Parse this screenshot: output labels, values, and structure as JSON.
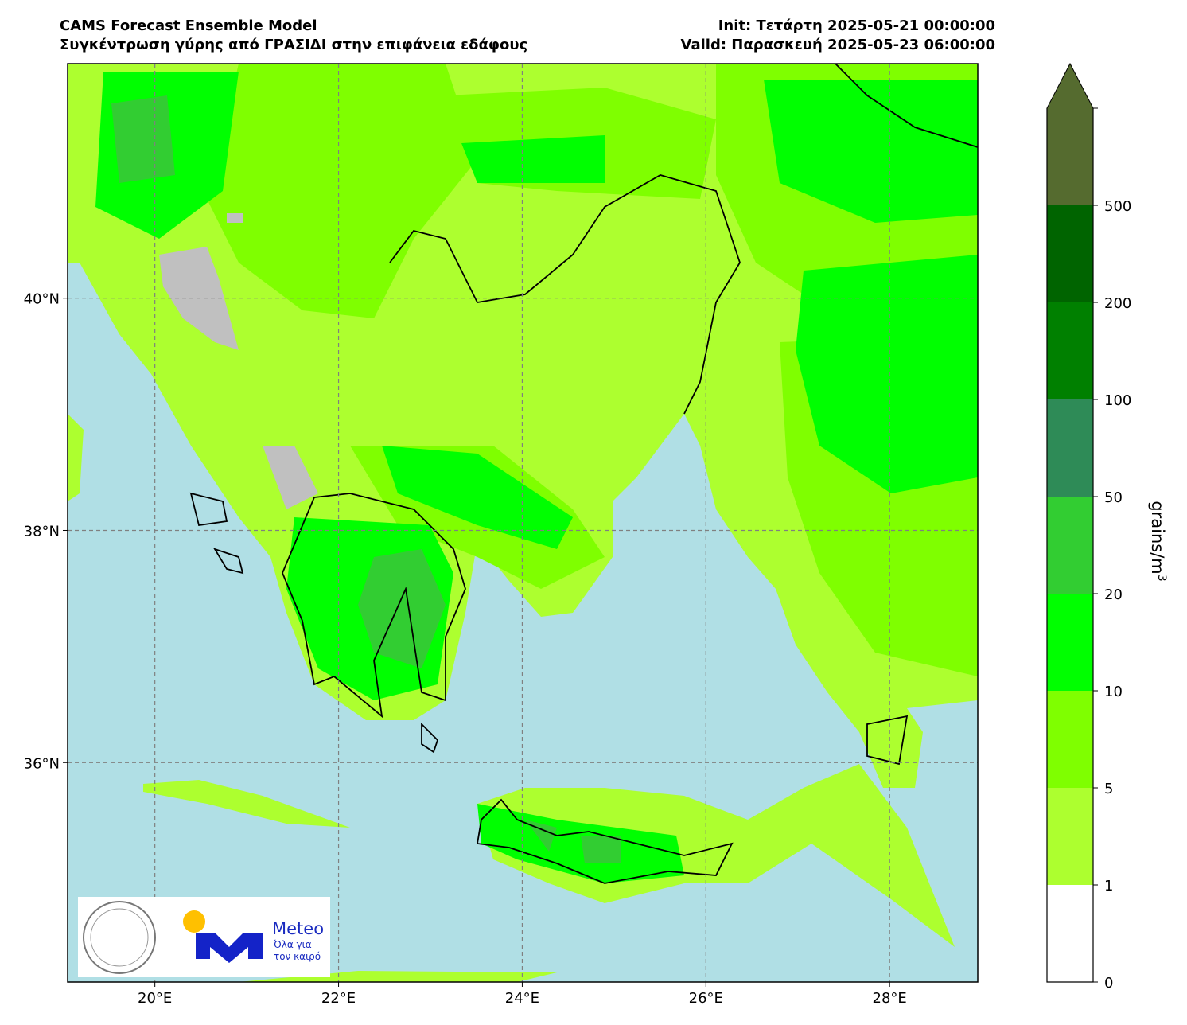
{
  "header": {
    "title_left": "CAMS Forecast Ensemble Model",
    "subtitle_left": "Συγκέντρωση γύρης από ΓΡΑΣΙΔΙ στην επιφάνεια εδάφους",
    "init": "Init: Τετάρτη 2025-05-21 00:00:00",
    "valid": "Valid: Παρασκευή 2025-05-23 06:00:00"
  },
  "map": {
    "xlim": [
      19.05,
      28.96
    ],
    "ylim": [
      34.11,
      42.02
    ],
    "xticks": [
      {
        "value": 20,
        "label": "20°E"
      },
      {
        "value": 22,
        "label": "22°E"
      },
      {
        "value": 24,
        "label": "24°E"
      },
      {
        "value": 26,
        "label": "26°E"
      },
      {
        "value": 28,
        "label": "28°E"
      }
    ],
    "yticks": [
      {
        "value": 36,
        "label": "36°N"
      },
      {
        "value": 38,
        "label": "38°N"
      },
      {
        "value": 40,
        "label": "40°N"
      }
    ],
    "grid": true
  },
  "colorbar": {
    "label": "grains/m",
    "label_superscript": "3",
    "levels": [
      0,
      1,
      5,
      10,
      20,
      50,
      100,
      200,
      500
    ],
    "colors": [
      "#ffffff",
      "#adff2f",
      "#7fff00",
      "#00ff00",
      "#32cd32",
      "#2e8b57",
      "#008000",
      "#006400"
    ],
    "extend_color": "#556b2f"
  },
  "logo": {
    "brand": "Meteo",
    "slogan_line1": "Όλα για",
    "slogan_line2": "τον καιρό"
  }
}
